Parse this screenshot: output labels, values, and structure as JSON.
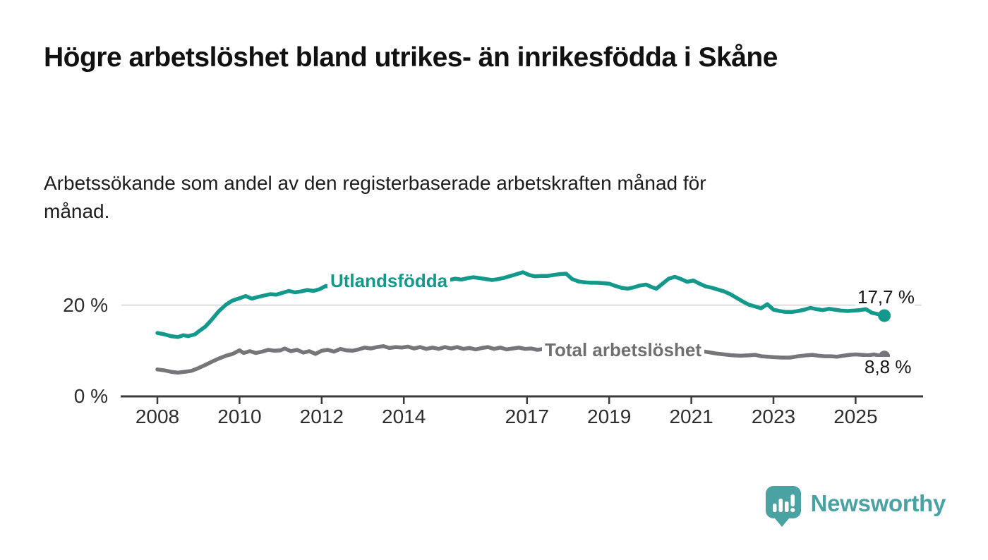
{
  "chart_data": {
    "type": "line",
    "title": "Högre arbetslöshet bland utrikes- än inrikesfödda i Skåne",
    "subtitle": "Arbetssökande som andel av den registerbaserade arbetskraften månad för månad.",
    "unit": "%",
    "grid": "horizontal-only",
    "legend_position": "inline-labels-on-lines",
    "x_axis": {
      "ticks": [
        "2008",
        "2010",
        "2012",
        "2014",
        "2017",
        "2019",
        "2021",
        "2023",
        "2025"
      ],
      "xlim": [
        2007.9,
        2026.6
      ]
    },
    "y_axis": {
      "ticks": [
        {
          "label": "0 %",
          "value": 0
        },
        {
          "label": "20 %",
          "value": 20
        }
      ],
      "ylim": [
        0,
        30
      ]
    },
    "series": [
      {
        "name": "Utlandsfödda",
        "color": "#13998b",
        "end_label": "17,7 %",
        "end_value": 17.7,
        "points": [
          [
            2008.0,
            13.9
          ],
          [
            2008.17,
            13.6
          ],
          [
            2008.33,
            13.2
          ],
          [
            2008.5,
            13.0
          ],
          [
            2008.63,
            13.4
          ],
          [
            2008.75,
            13.2
          ],
          [
            2008.92,
            13.6
          ],
          [
            2009.0,
            14.2
          ],
          [
            2009.17,
            15.3
          ],
          [
            2009.33,
            16.9
          ],
          [
            2009.5,
            18.7
          ],
          [
            2009.67,
            20.1
          ],
          [
            2009.83,
            21.0
          ],
          [
            2010.0,
            21.5
          ],
          [
            2010.15,
            22.0
          ],
          [
            2010.3,
            21.4
          ],
          [
            2010.45,
            21.8
          ],
          [
            2010.6,
            22.1
          ],
          [
            2010.75,
            22.4
          ],
          [
            2010.9,
            22.3
          ],
          [
            2011.05,
            22.7
          ],
          [
            2011.2,
            23.1
          ],
          [
            2011.35,
            22.8
          ],
          [
            2011.5,
            23.0
          ],
          [
            2011.65,
            23.3
          ],
          [
            2011.8,
            23.1
          ],
          [
            2011.95,
            23.5
          ],
          [
            2012.1,
            24.2
          ],
          [
            2012.25,
            23.8
          ],
          [
            2012.4,
            24.0
          ],
          [
            2012.55,
            24.2
          ],
          [
            2012.7,
            24.5
          ],
          [
            2012.85,
            24.2
          ],
          [
            2013.0,
            24.6
          ],
          [
            2013.15,
            24.4
          ],
          [
            2013.3,
            24.7
          ],
          [
            2013.45,
            24.9
          ],
          [
            2013.6,
            24.7
          ],
          [
            2013.75,
            25.0
          ],
          [
            2013.9,
            24.8
          ],
          [
            2014.05,
            25.1
          ],
          [
            2014.2,
            25.3
          ],
          [
            2014.35,
            25.1
          ],
          [
            2014.5,
            25.2
          ],
          [
            2014.65,
            25.5
          ],
          [
            2014.8,
            25.3
          ],
          [
            2014.95,
            25.6
          ],
          [
            2015.1,
            25.5
          ],
          [
            2015.25,
            25.8
          ],
          [
            2015.4,
            25.6
          ],
          [
            2015.55,
            25.9
          ],
          [
            2015.7,
            26.1
          ],
          [
            2015.85,
            25.9
          ],
          [
            2016.0,
            25.7
          ],
          [
            2016.15,
            25.5
          ],
          [
            2016.3,
            25.7
          ],
          [
            2016.45,
            26.0
          ],
          [
            2016.6,
            26.4
          ],
          [
            2016.75,
            26.8
          ],
          [
            2016.9,
            27.2
          ],
          [
            2017.05,
            26.6
          ],
          [
            2017.2,
            26.3
          ],
          [
            2017.35,
            26.4
          ],
          [
            2017.5,
            26.4
          ],
          [
            2017.65,
            26.6
          ],
          [
            2017.8,
            26.8
          ],
          [
            2017.95,
            26.9
          ],
          [
            2018.1,
            25.7
          ],
          [
            2018.25,
            25.2
          ],
          [
            2018.4,
            25.0
          ],
          [
            2018.55,
            24.9
          ],
          [
            2018.7,
            24.9
          ],
          [
            2018.85,
            24.8
          ],
          [
            2019.0,
            24.7
          ],
          [
            2019.15,
            24.2
          ],
          [
            2019.3,
            23.8
          ],
          [
            2019.45,
            23.6
          ],
          [
            2019.6,
            23.9
          ],
          [
            2019.75,
            24.3
          ],
          [
            2019.9,
            24.5
          ],
          [
            2020.05,
            23.9
          ],
          [
            2020.15,
            23.6
          ],
          [
            2020.3,
            24.7
          ],
          [
            2020.45,
            25.8
          ],
          [
            2020.6,
            26.2
          ],
          [
            2020.75,
            25.7
          ],
          [
            2020.9,
            25.1
          ],
          [
            2021.05,
            25.4
          ],
          [
            2021.2,
            24.7
          ],
          [
            2021.35,
            24.1
          ],
          [
            2021.5,
            23.8
          ],
          [
            2021.65,
            23.4
          ],
          [
            2021.8,
            23.0
          ],
          [
            2021.95,
            22.4
          ],
          [
            2022.1,
            21.6
          ],
          [
            2022.25,
            20.8
          ],
          [
            2022.4,
            20.1
          ],
          [
            2022.55,
            19.7
          ],
          [
            2022.7,
            19.3
          ],
          [
            2022.85,
            20.2
          ],
          [
            2023.0,
            19.0
          ],
          [
            2023.15,
            18.7
          ],
          [
            2023.3,
            18.5
          ],
          [
            2023.45,
            18.5
          ],
          [
            2023.6,
            18.7
          ],
          [
            2023.75,
            19.0
          ],
          [
            2023.9,
            19.4
          ],
          [
            2024.05,
            19.1
          ],
          [
            2024.2,
            18.9
          ],
          [
            2024.35,
            19.2
          ],
          [
            2024.5,
            19.0
          ],
          [
            2024.65,
            18.8
          ],
          [
            2024.8,
            18.7
          ],
          [
            2024.95,
            18.8
          ],
          [
            2025.1,
            18.9
          ],
          [
            2025.25,
            19.1
          ],
          [
            2025.4,
            18.3
          ],
          [
            2025.55,
            18.0
          ],
          [
            2025.7,
            17.7
          ]
        ]
      },
      {
        "name": "Total arbetslöshet",
        "color": "#76767a",
        "end_label": "8,8 %",
        "end_value": 8.8,
        "points": [
          [
            2008.0,
            5.9
          ],
          [
            2008.17,
            5.7
          ],
          [
            2008.33,
            5.4
          ],
          [
            2008.5,
            5.2
          ],
          [
            2008.67,
            5.4
          ],
          [
            2008.83,
            5.6
          ],
          [
            2009.0,
            6.2
          ],
          [
            2009.17,
            6.9
          ],
          [
            2009.33,
            7.6
          ],
          [
            2009.5,
            8.3
          ],
          [
            2009.67,
            8.9
          ],
          [
            2009.83,
            9.3
          ],
          [
            2010.0,
            10.1
          ],
          [
            2010.1,
            9.5
          ],
          [
            2010.25,
            9.9
          ],
          [
            2010.4,
            9.5
          ],
          [
            2010.55,
            9.8
          ],
          [
            2010.7,
            10.2
          ],
          [
            2010.85,
            10.0
          ],
          [
            2011.0,
            10.1
          ],
          [
            2011.1,
            10.5
          ],
          [
            2011.25,
            9.9
          ],
          [
            2011.4,
            10.2
          ],
          [
            2011.55,
            9.6
          ],
          [
            2011.7,
            9.9
          ],
          [
            2011.85,
            9.3
          ],
          [
            2012.0,
            10.0
          ],
          [
            2012.15,
            10.2
          ],
          [
            2012.3,
            9.8
          ],
          [
            2012.45,
            10.4
          ],
          [
            2012.6,
            10.1
          ],
          [
            2012.75,
            10.0
          ],
          [
            2012.9,
            10.3
          ],
          [
            2013.05,
            10.7
          ],
          [
            2013.2,
            10.5
          ],
          [
            2013.35,
            10.8
          ],
          [
            2013.5,
            11.0
          ],
          [
            2013.65,
            10.6
          ],
          [
            2013.8,
            10.8
          ],
          [
            2013.95,
            10.7
          ],
          [
            2014.1,
            10.9
          ],
          [
            2014.25,
            10.5
          ],
          [
            2014.4,
            10.8
          ],
          [
            2014.55,
            10.4
          ],
          [
            2014.7,
            10.7
          ],
          [
            2014.85,
            10.4
          ],
          [
            2015.0,
            10.8
          ],
          [
            2015.15,
            10.5
          ],
          [
            2015.3,
            10.8
          ],
          [
            2015.45,
            10.4
          ],
          [
            2015.6,
            10.6
          ],
          [
            2015.75,
            10.3
          ],
          [
            2015.9,
            10.6
          ],
          [
            2016.05,
            10.8
          ],
          [
            2016.2,
            10.4
          ],
          [
            2016.35,
            10.7
          ],
          [
            2016.5,
            10.3
          ],
          [
            2016.65,
            10.5
          ],
          [
            2016.8,
            10.7
          ],
          [
            2016.95,
            10.4
          ],
          [
            2017.1,
            10.5
          ],
          [
            2017.25,
            10.2
          ],
          [
            2017.4,
            10.4
          ],
          [
            2017.55,
            10.1
          ],
          [
            2017.7,
            10.0
          ],
          [
            2017.85,
            10.2
          ],
          [
            2018.0,
            10.1
          ],
          [
            2018.2,
            9.9
          ],
          [
            2018.4,
            9.7
          ],
          [
            2018.6,
            9.6
          ],
          [
            2018.8,
            9.5
          ],
          [
            2019.0,
            9.5
          ],
          [
            2019.2,
            9.3
          ],
          [
            2019.4,
            9.2
          ],
          [
            2019.6,
            9.4
          ],
          [
            2019.8,
            9.3
          ],
          [
            2020.0,
            9.5
          ],
          [
            2020.2,
            10.2
          ],
          [
            2020.4,
            10.7
          ],
          [
            2020.6,
            10.8
          ],
          [
            2020.8,
            10.6
          ],
          [
            2021.0,
            10.3
          ],
          [
            2021.2,
            10.0
          ],
          [
            2021.4,
            9.7
          ],
          [
            2021.6,
            9.4
          ],
          [
            2021.8,
            9.2
          ],
          [
            2022.0,
            9.0
          ],
          [
            2022.2,
            8.9
          ],
          [
            2022.4,
            9.0
          ],
          [
            2022.55,
            9.1
          ],
          [
            2022.7,
            8.8
          ],
          [
            2022.85,
            8.7
          ],
          [
            2023.0,
            8.6
          ],
          [
            2023.2,
            8.5
          ],
          [
            2023.4,
            8.5
          ],
          [
            2023.6,
            8.8
          ],
          [
            2023.8,
            9.0
          ],
          [
            2023.95,
            9.1
          ],
          [
            2024.1,
            8.9
          ],
          [
            2024.25,
            8.8
          ],
          [
            2024.4,
            8.8
          ],
          [
            2024.55,
            8.7
          ],
          [
            2024.7,
            8.9
          ],
          [
            2024.85,
            9.1
          ],
          [
            2025.0,
            9.2
          ],
          [
            2025.15,
            9.1
          ],
          [
            2025.3,
            9.0
          ],
          [
            2025.45,
            9.2
          ],
          [
            2025.55,
            9.0
          ],
          [
            2025.7,
            8.8
          ]
        ]
      }
    ]
  },
  "style": {
    "background": "#ffffff",
    "grid_color": "#dcdcdc",
    "axis_color": "#3b3b3b",
    "tick_label_color": "#2d2d2d",
    "accent_teal": "#13998b",
    "accent_gray": "#76767a",
    "logo_color": "#4ba2a2"
  },
  "branding": {
    "logo_text": "Newsworthy",
    "logo_icon": "bar-chart-speech-bubble-icon"
  }
}
